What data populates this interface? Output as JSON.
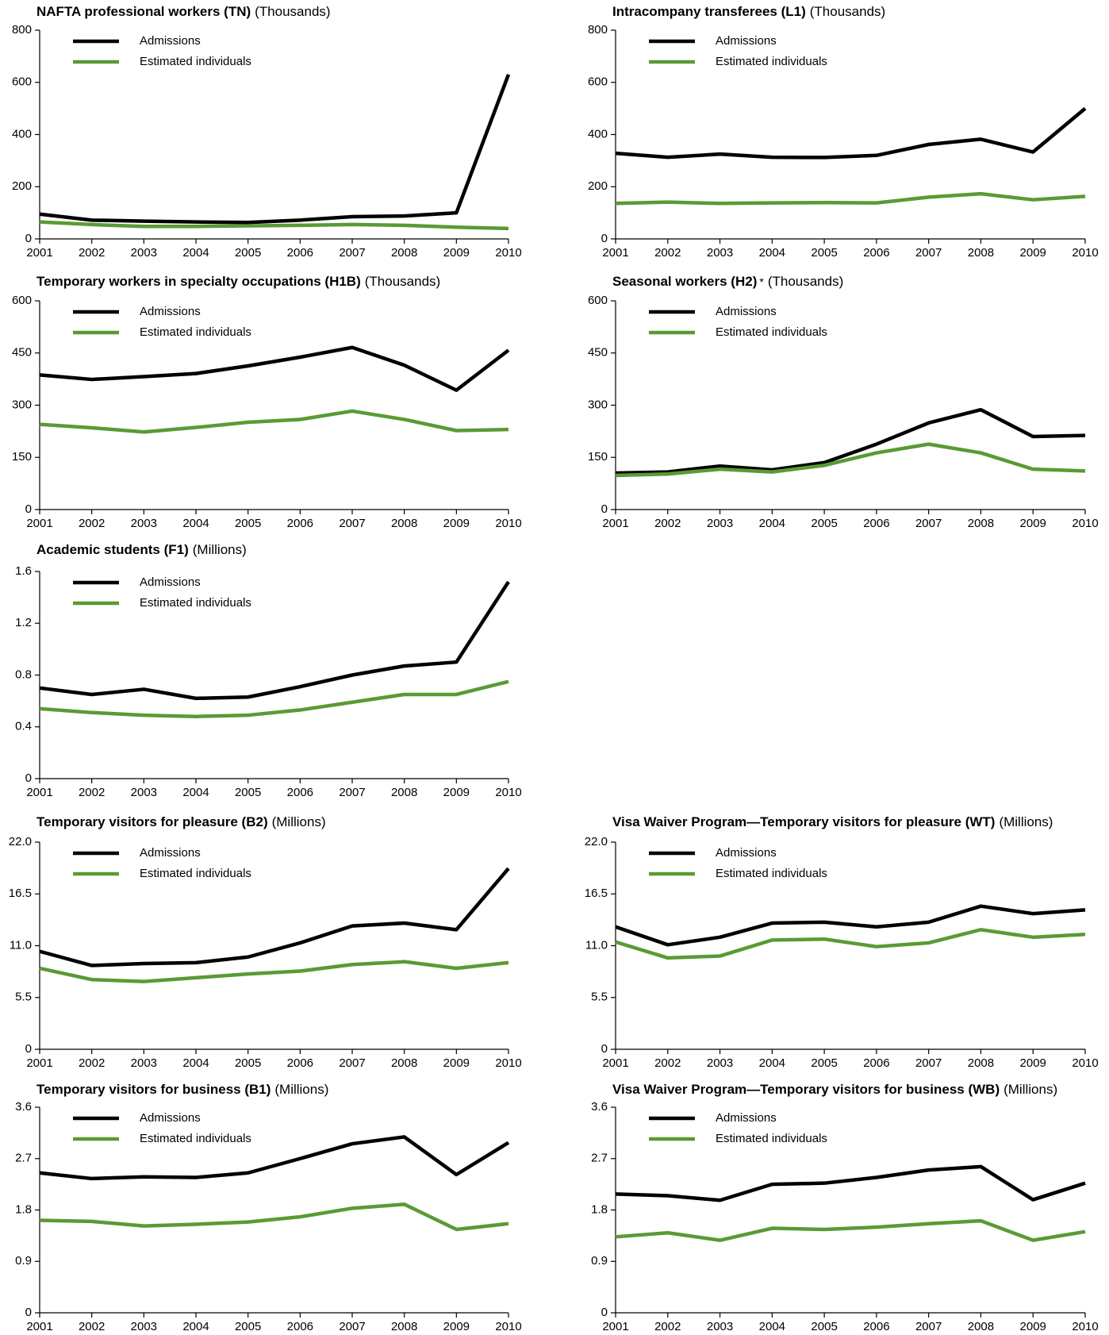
{
  "chart_data": [
    {
      "type": "line",
      "title": "NAFTA professional workers (TN)",
      "units": "(Thousands)",
      "categories": [
        "2001",
        "2002",
        "2003",
        "2004",
        "2005",
        "2006",
        "2007",
        "2008",
        "2009",
        "2010"
      ],
      "series": [
        {
          "name": "Admissions",
          "color": "#000000",
          "values": [
            95,
            72,
            68,
            65,
            63,
            72,
            85,
            88,
            100,
            630
          ]
        },
        {
          "name": "Estimated individuals",
          "color": "#5a9a35",
          "values": [
            65,
            55,
            48,
            48,
            50,
            52,
            55,
            52,
            45,
            40
          ]
        }
      ],
      "ylim": [
        0,
        800
      ],
      "yticks": [
        0,
        200,
        400,
        600,
        800
      ]
    },
    {
      "type": "line",
      "title": "Intracompany transferees (L1)",
      "units": "(Thousands)",
      "categories": [
        "2001",
        "2002",
        "2003",
        "2004",
        "2005",
        "2006",
        "2007",
        "2008",
        "2009",
        "2010"
      ],
      "series": [
        {
          "name": "Admissions",
          "color": "#000000",
          "values": [
            328,
            313,
            325,
            313,
            312,
            320,
            362,
            382,
            333,
            500
          ]
        },
        {
          "name": "Estimated individuals",
          "color": "#5a9a35",
          "values": [
            136,
            141,
            136,
            138,
            139,
            138,
            160,
            173,
            150,
            163
          ]
        }
      ],
      "ylim": [
        0,
        800
      ],
      "yticks": [
        0,
        200,
        400,
        600,
        800
      ]
    },
    {
      "type": "line",
      "title": "Temporary workers in specialty occupations (H1B)",
      "units": "(Thousands)",
      "categories": [
        "2001",
        "2002",
        "2003",
        "2004",
        "2005",
        "2006",
        "2007",
        "2008",
        "2009",
        "2010"
      ],
      "series": [
        {
          "name": "Admissions",
          "color": "#000000",
          "values": [
            387,
            374,
            382,
            391,
            413,
            438,
            466,
            415,
            343,
            458
          ]
        },
        {
          "name": "Estimated individuals",
          "color": "#5a9a35",
          "values": [
            245,
            235,
            223,
            236,
            251,
            259,
            283,
            259,
            227,
            230
          ]
        }
      ],
      "ylim": [
        0,
        600
      ],
      "yticks": [
        0,
        150,
        300,
        450,
        600
      ]
    },
    {
      "type": "line",
      "title": "Seasonal workers (H2)",
      "title_note": "*",
      "units": "(Thousands)",
      "categories": [
        "2001",
        "2002",
        "2003",
        "2004",
        "2005",
        "2006",
        "2007",
        "2008",
        "2009",
        "2010"
      ],
      "series": [
        {
          "name": "Admissions",
          "color": "#000000",
          "values": [
            105,
            108,
            125,
            114,
            135,
            188,
            249,
            287,
            210,
            213
          ]
        },
        {
          "name": "Estimated individuals",
          "color": "#5a9a35",
          "values": [
            98,
            102,
            116,
            108,
            127,
            163,
            188,
            163,
            116,
            111
          ]
        }
      ],
      "ylim": [
        0,
        600
      ],
      "yticks": [
        0,
        150,
        300,
        450,
        600
      ]
    },
    {
      "type": "line",
      "title": "Academic students (F1)",
      "units": "(Millions)",
      "categories": [
        "2001",
        "2002",
        "2003",
        "2004",
        "2005",
        "2006",
        "2007",
        "2008",
        "2009",
        "2010"
      ],
      "series": [
        {
          "name": "Admissions",
          "color": "#000000",
          "values": [
            0.7,
            0.65,
            0.69,
            0.62,
            0.63,
            0.71,
            0.8,
            0.87,
            0.9,
            1.52
          ]
        },
        {
          "name": "Estimated individuals",
          "color": "#5a9a35",
          "values": [
            0.54,
            0.51,
            0.49,
            0.48,
            0.49,
            0.53,
            0.59,
            0.65,
            0.65,
            0.75
          ]
        }
      ],
      "ylim": [
        0,
        1.6
      ],
      "yticks": [
        0,
        0.4,
        0.8,
        1.2,
        1.6
      ]
    },
    {
      "type": "line",
      "title": "Temporary visitors for pleasure (B2)",
      "units": "(Millions)",
      "categories": [
        "2001",
        "2002",
        "2003",
        "2004",
        "2005",
        "2006",
        "2007",
        "2008",
        "2009",
        "2010"
      ],
      "series": [
        {
          "name": "Admissions",
          "color": "#000000",
          "values": [
            10.4,
            8.9,
            9.1,
            9.2,
            9.8,
            11.3,
            13.1,
            13.4,
            12.7,
            19.2
          ]
        },
        {
          "name": "Estimated individuals",
          "color": "#5a9a35",
          "values": [
            8.6,
            7.4,
            7.2,
            7.6,
            8.0,
            8.3,
            9.0,
            9.3,
            8.6,
            9.2
          ]
        }
      ],
      "ylim": [
        0,
        22
      ],
      "yticks": [
        0,
        5.5,
        {
          "value": 11,
          "label": "11.0"
        },
        16.5,
        {
          "value": 22,
          "label": "22.0"
        }
      ]
    },
    {
      "type": "line",
      "title": "Visa Waiver Program—Temporary visitors for pleasure (WT)",
      "units": "(Millions)",
      "categories": [
        "2001",
        "2002",
        "2003",
        "2004",
        "2005",
        "2006",
        "2007",
        "2008",
        "2009",
        "2010"
      ],
      "series": [
        {
          "name": "Admissions",
          "color": "#000000",
          "values": [
            13.0,
            11.1,
            11.9,
            13.4,
            13.5,
            13.0,
            13.5,
            15.2,
            14.4,
            14.8
          ]
        },
        {
          "name": "Estimated individuals",
          "color": "#5a9a35",
          "values": [
            11.4,
            9.7,
            9.9,
            11.6,
            11.7,
            10.9,
            11.3,
            12.7,
            11.9,
            12.2
          ]
        }
      ],
      "ylim": [
        0,
        22
      ],
      "yticks": [
        0,
        5.5,
        {
          "value": 11,
          "label": "11.0"
        },
        16.5,
        {
          "value": 22,
          "label": "22.0"
        }
      ]
    },
    {
      "type": "line",
      "title": "Temporary visitors for business (B1)",
      "units": "(Millions)",
      "categories": [
        "2001",
        "2002",
        "2003",
        "2004",
        "2005",
        "2006",
        "2007",
        "2008",
        "2009",
        "2010"
      ],
      "series": [
        {
          "name": "Admissions",
          "color": "#000000",
          "values": [
            2.45,
            2.35,
            2.38,
            2.37,
            2.45,
            2.7,
            2.96,
            3.08,
            2.42,
            2.98
          ]
        },
        {
          "name": "Estimated individuals",
          "color": "#5a9a35",
          "values": [
            1.62,
            1.6,
            1.52,
            1.55,
            1.59,
            1.68,
            1.83,
            1.9,
            1.46,
            1.56
          ]
        }
      ],
      "ylim": [
        0,
        3.6
      ],
      "yticks": [
        0,
        0.9,
        1.8,
        2.7,
        3.6
      ]
    },
    {
      "type": "line",
      "title": "Visa Waiver Program—Temporary visitors for business (WB)",
      "units": "(Millions)",
      "categories": [
        "2001",
        "2002",
        "2003",
        "2004",
        "2005",
        "2006",
        "2007",
        "2008",
        "2009",
        "2010"
      ],
      "series": [
        {
          "name": "Admissions",
          "color": "#000000",
          "values": [
            2.08,
            2.05,
            1.97,
            2.25,
            2.27,
            2.37,
            2.5,
            2.56,
            1.98,
            2.27
          ]
        },
        {
          "name": "Estimated individuals",
          "color": "#5a9a35",
          "values": [
            1.33,
            1.4,
            1.27,
            1.48,
            1.46,
            1.5,
            1.56,
            1.61,
            1.27,
            1.42
          ]
        }
      ],
      "ylim": [
        0,
        3.6
      ],
      "yticks": [
        0,
        0.9,
        1.8,
        2.7,
        3.6
      ]
    }
  ]
}
